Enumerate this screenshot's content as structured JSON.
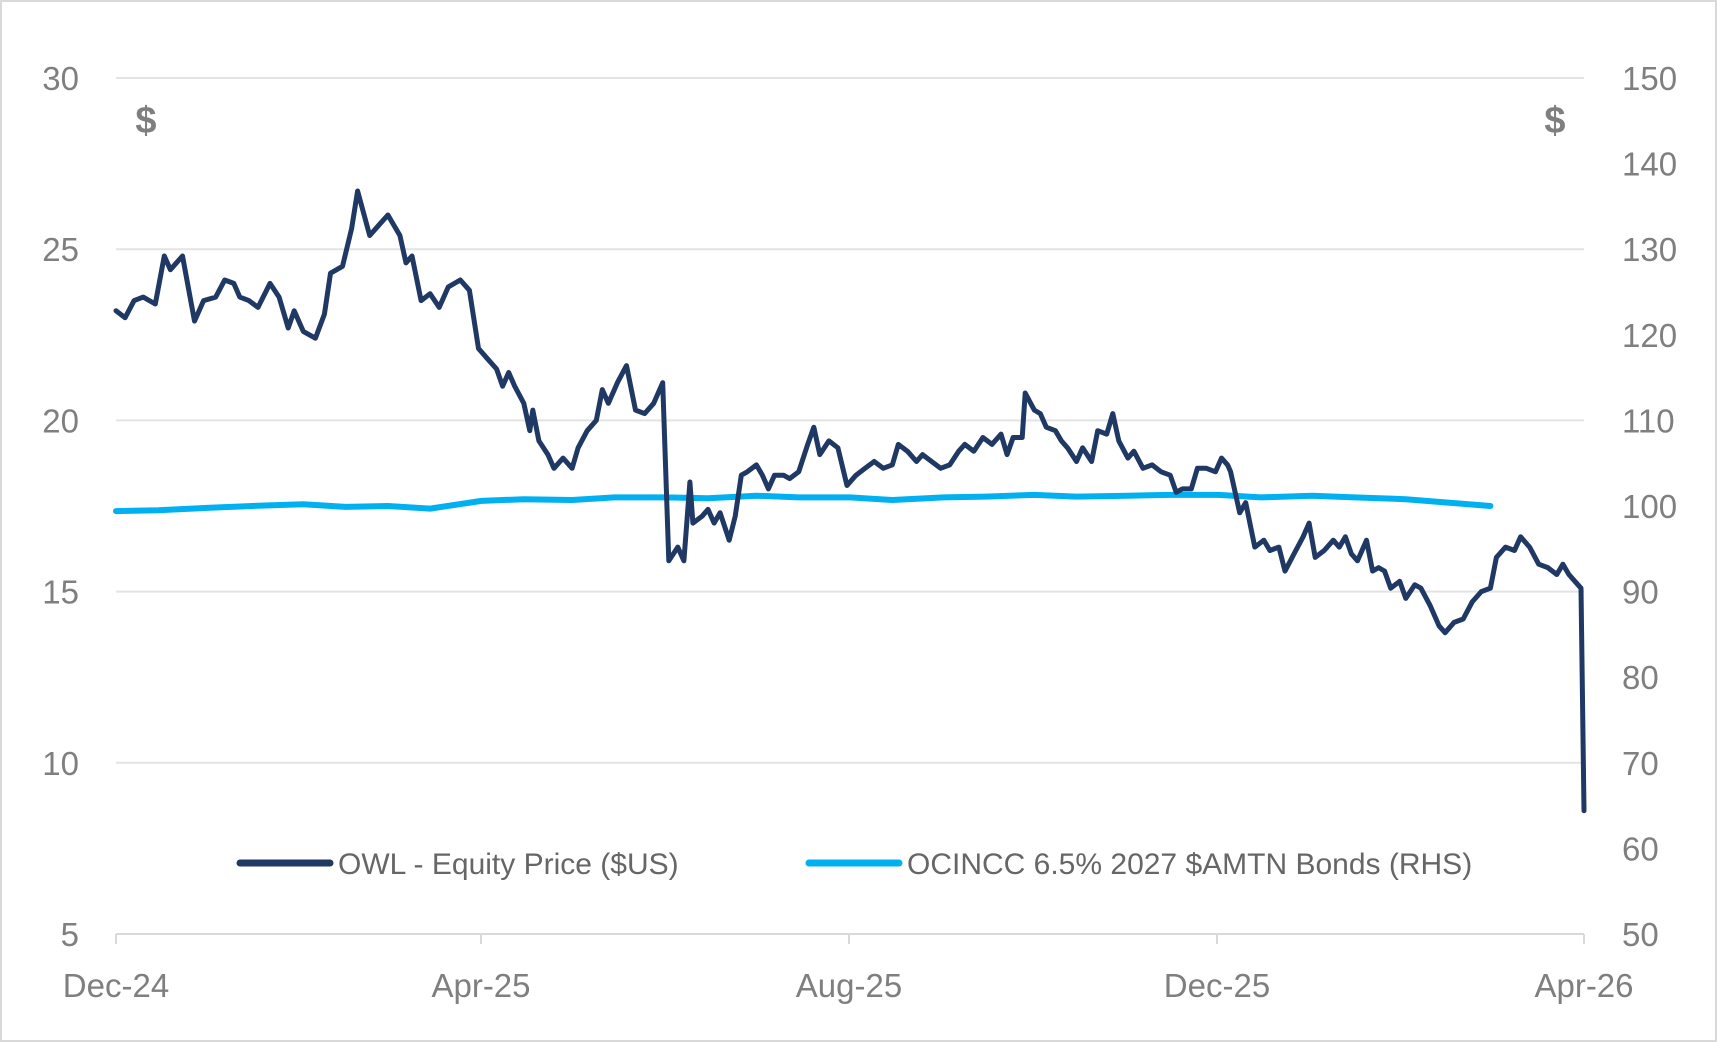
{
  "chart_data": {
    "type": "line",
    "title": "",
    "xlabel": "",
    "ylabel_left": "$",
    "ylabel_right": "$",
    "x_ticks": [
      "Dec-24",
      "Apr-25",
      "Aug-25",
      "Dec-25",
      "Apr-26"
    ],
    "x_range": [
      "2024-12-01",
      "2026-04-01"
    ],
    "ylim_left": [
      5,
      30
    ],
    "yticks_left": [
      5,
      10,
      15,
      20,
      25,
      30
    ],
    "ylim_right": [
      50,
      150
    ],
    "yticks_right": [
      50,
      60,
      70,
      80,
      90,
      100,
      110,
      120,
      130,
      140,
      150
    ],
    "grid": "horizontal",
    "legend_position": "bottom",
    "series": [
      {
        "name": "OWL - Equity Price ($US)",
        "axis": "left",
        "color": "#1f3864",
        "points": [
          [
            "2024-12-01",
            23.2
          ],
          [
            "2024-12-04",
            23.0
          ],
          [
            "2024-12-07",
            23.5
          ],
          [
            "2024-12-10",
            23.6
          ],
          [
            "2024-12-14",
            23.4
          ],
          [
            "2024-12-17",
            24.8
          ],
          [
            "2024-12-19",
            24.4
          ],
          [
            "2024-12-23",
            24.8
          ],
          [
            "2024-12-27",
            22.9
          ],
          [
            "2024-12-30",
            23.5
          ],
          [
            "2025-01-03",
            23.6
          ],
          [
            "2025-01-06",
            24.1
          ],
          [
            "2025-01-09",
            24.0
          ],
          [
            "2025-01-11",
            23.6
          ],
          [
            "2025-01-14",
            23.5
          ],
          [
            "2025-01-17",
            23.3
          ],
          [
            "2025-01-21",
            24.0
          ],
          [
            "2025-01-24",
            23.6
          ],
          [
            "2025-01-27",
            22.7
          ],
          [
            "2025-01-29",
            23.2
          ],
          [
            "2025-02-01",
            22.6
          ],
          [
            "2025-02-05",
            22.4
          ],
          [
            "2025-02-08",
            23.1
          ],
          [
            "2025-02-10",
            24.3
          ],
          [
            "2025-02-14",
            24.5
          ],
          [
            "2025-02-17",
            25.6
          ],
          [
            "2025-02-19",
            26.7
          ],
          [
            "2025-02-23",
            25.4
          ],
          [
            "2025-02-26",
            25.7
          ],
          [
            "2025-03-01",
            26.0
          ],
          [
            "2025-03-05",
            25.4
          ],
          [
            "2025-03-07",
            24.6
          ],
          [
            "2025-03-09",
            24.8
          ],
          [
            "2025-03-12",
            23.5
          ],
          [
            "2025-03-15",
            23.7
          ],
          [
            "2025-03-18",
            23.3
          ],
          [
            "2025-03-21",
            23.9
          ],
          [
            "2025-03-25",
            24.1
          ],
          [
            "2025-03-28",
            23.8
          ],
          [
            "2025-03-31",
            22.1
          ],
          [
            "2025-04-03",
            21.8
          ],
          [
            "2025-04-06",
            21.5
          ],
          [
            "2025-04-08",
            21.0
          ],
          [
            "2025-04-10",
            21.4
          ],
          [
            "2025-04-12",
            21.0
          ],
          [
            "2025-04-15",
            20.5
          ],
          [
            "2025-04-17",
            19.7
          ],
          [
            "2025-04-18",
            20.3
          ],
          [
            "2025-04-20",
            19.4
          ],
          [
            "2025-04-23",
            19.0
          ],
          [
            "2025-04-25",
            18.6
          ],
          [
            "2025-04-28",
            18.9
          ],
          [
            "2025-05-01",
            18.6
          ],
          [
            "2025-05-03",
            19.2
          ],
          [
            "2025-05-06",
            19.7
          ],
          [
            "2025-05-09",
            20.0
          ],
          [
            "2025-05-11",
            20.9
          ],
          [
            "2025-05-13",
            20.5
          ],
          [
            "2025-05-16",
            21.1
          ],
          [
            "2025-05-19",
            21.6
          ],
          [
            "2025-05-22",
            20.3
          ],
          [
            "2025-05-25",
            20.2
          ],
          [
            "2025-05-28",
            20.5
          ],
          [
            "2025-05-31",
            21.1
          ],
          [
            "2025-06-02",
            15.9
          ],
          [
            "2025-06-05",
            16.3
          ],
          [
            "2025-06-07",
            15.9
          ],
          [
            "2025-06-09",
            18.2
          ],
          [
            "2025-06-10",
            17.0
          ],
          [
            "2025-06-13",
            17.2
          ],
          [
            "2025-06-15",
            17.4
          ],
          [
            "2025-06-17",
            17.0
          ],
          [
            "2025-06-19",
            17.3
          ],
          [
            "2025-06-22",
            16.5
          ],
          [
            "2025-06-24",
            17.2
          ],
          [
            "2025-06-26",
            18.4
          ],
          [
            "2025-06-28",
            18.5
          ],
          [
            "2025-07-01",
            18.7
          ],
          [
            "2025-07-03",
            18.4
          ],
          [
            "2025-07-05",
            18.0
          ],
          [
            "2025-07-07",
            18.4
          ],
          [
            "2025-07-10",
            18.4
          ],
          [
            "2025-07-12",
            18.3
          ],
          [
            "2025-07-15",
            18.5
          ],
          [
            "2025-07-18",
            19.3
          ],
          [
            "2025-07-20",
            19.8
          ],
          [
            "2025-07-22",
            19.0
          ],
          [
            "2025-07-25",
            19.4
          ],
          [
            "2025-07-28",
            19.2
          ],
          [
            "2025-07-31",
            18.1
          ],
          [
            "2025-08-03",
            18.4
          ],
          [
            "2025-08-06",
            18.6
          ],
          [
            "2025-08-09",
            18.8
          ],
          [
            "2025-08-12",
            18.6
          ],
          [
            "2025-08-15",
            18.7
          ],
          [
            "2025-08-17",
            19.3
          ],
          [
            "2025-08-20",
            19.1
          ],
          [
            "2025-08-23",
            18.8
          ],
          [
            "2025-08-25",
            19.0
          ],
          [
            "2025-08-28",
            18.8
          ],
          [
            "2025-08-31",
            18.6
          ],
          [
            "2025-09-03",
            18.7
          ],
          [
            "2025-09-06",
            19.1
          ],
          [
            "2025-09-08",
            19.3
          ],
          [
            "2025-09-11",
            19.1
          ],
          [
            "2025-09-14",
            19.5
          ],
          [
            "2025-09-17",
            19.3
          ],
          [
            "2025-09-20",
            19.6
          ],
          [
            "2025-09-22",
            19.0
          ],
          [
            "2025-09-24",
            19.5
          ],
          [
            "2025-09-27",
            19.5
          ],
          [
            "2025-09-28",
            20.8
          ],
          [
            "2025-10-01",
            20.3
          ],
          [
            "2025-10-03",
            20.2
          ],
          [
            "2025-10-05",
            19.8
          ],
          [
            "2025-10-08",
            19.7
          ],
          [
            "2025-10-10",
            19.4
          ],
          [
            "2025-10-12",
            19.2
          ],
          [
            "2025-10-15",
            18.8
          ],
          [
            "2025-10-17",
            19.2
          ],
          [
            "2025-10-20",
            18.8
          ],
          [
            "2025-10-22",
            19.7
          ],
          [
            "2025-10-25",
            19.6
          ],
          [
            "2025-10-27",
            20.2
          ],
          [
            "2025-10-29",
            19.4
          ],
          [
            "2025-11-01",
            18.9
          ],
          [
            "2025-11-03",
            19.1
          ],
          [
            "2025-11-06",
            18.6
          ],
          [
            "2025-11-09",
            18.7
          ],
          [
            "2025-11-12",
            18.5
          ],
          [
            "2025-11-15",
            18.4
          ],
          [
            "2025-11-17",
            17.9
          ],
          [
            "2025-11-19",
            18.0
          ],
          [
            "2025-11-22",
            18.0
          ],
          [
            "2025-11-24",
            18.6
          ],
          [
            "2025-11-27",
            18.6
          ],
          [
            "2025-11-30",
            18.5
          ],
          [
            "2025-12-02",
            18.9
          ],
          [
            "2025-12-04",
            18.7
          ],
          [
            "2025-12-05",
            18.5
          ],
          [
            "2025-12-08",
            17.3
          ],
          [
            "2025-12-10",
            17.6
          ],
          [
            "2025-12-13",
            16.3
          ],
          [
            "2025-12-16",
            16.5
          ],
          [
            "2025-12-18",
            16.2
          ],
          [
            "2025-12-21",
            16.3
          ],
          [
            "2025-12-23",
            15.6
          ],
          [
            "2025-12-26",
            16.1
          ],
          [
            "2025-12-29",
            16.6
          ],
          [
            "2025-12-31",
            17.0
          ],
          [
            "2026-01-02",
            16.0
          ],
          [
            "2026-01-05",
            16.2
          ],
          [
            "2026-01-08",
            16.5
          ],
          [
            "2026-01-10",
            16.3
          ],
          [
            "2026-01-12",
            16.6
          ],
          [
            "2026-01-14",
            16.1
          ],
          [
            "2026-01-16",
            15.9
          ],
          [
            "2026-01-19",
            16.5
          ],
          [
            "2026-01-21",
            15.6
          ],
          [
            "2026-01-23",
            15.7
          ],
          [
            "2026-01-25",
            15.6
          ],
          [
            "2026-01-27",
            15.1
          ],
          [
            "2026-01-30",
            15.3
          ],
          [
            "2026-02-01",
            14.8
          ],
          [
            "2026-02-04",
            15.2
          ],
          [
            "2026-02-06",
            15.1
          ],
          [
            "2026-02-09",
            14.6
          ],
          [
            "2026-02-12",
            14.0
          ],
          [
            "2026-02-14",
            13.8
          ],
          [
            "2026-02-17",
            14.1
          ],
          [
            "2026-02-20",
            14.2
          ],
          [
            "2026-02-23",
            14.7
          ],
          [
            "2026-02-26",
            15.0
          ],
          [
            "2026-03-01",
            15.1
          ],
          [
            "2026-03-03",
            16.0
          ],
          [
            "2026-03-06",
            16.3
          ],
          [
            "2026-03-09",
            16.2
          ],
          [
            "2026-03-11",
            16.6
          ],
          [
            "2026-03-14",
            16.3
          ],
          [
            "2026-03-17",
            15.8
          ],
          [
            "2026-03-20",
            15.7
          ],
          [
            "2026-03-23",
            15.5
          ],
          [
            "2026-03-25",
            15.8
          ],
          [
            "2026-03-27",
            15.5
          ],
          [
            "2026-03-29",
            15.3
          ],
          [
            "2026-03-31",
            15.1
          ],
          [
            "2026-04-01",
            8.6
          ]
        ]
      },
      {
        "name": "OCINCC 6.5% 2027 $AMTN Bonds (RHS)",
        "axis": "right",
        "color": "#00b0f0",
        "points": [
          [
            "2024-12-01",
            99.4
          ],
          [
            "2024-12-15",
            99.5
          ],
          [
            "2025-01-01",
            99.8
          ],
          [
            "2025-01-15",
            100.0
          ],
          [
            "2025-02-01",
            100.2
          ],
          [
            "2025-02-15",
            99.9
          ],
          [
            "2025-03-01",
            100.0
          ],
          [
            "2025-03-15",
            99.7
          ],
          [
            "2025-04-01",
            100.6
          ],
          [
            "2025-04-15",
            100.8
          ],
          [
            "2025-05-01",
            100.7
          ],
          [
            "2025-05-15",
            101.0
          ],
          [
            "2025-06-01",
            101.0
          ],
          [
            "2025-06-15",
            100.9
          ],
          [
            "2025-07-01",
            101.2
          ],
          [
            "2025-07-15",
            101.0
          ],
          [
            "2025-08-01",
            101.0
          ],
          [
            "2025-08-15",
            100.7
          ],
          [
            "2025-09-01",
            101.0
          ],
          [
            "2025-09-15",
            101.1
          ],
          [
            "2025-10-01",
            101.3
          ],
          [
            "2025-10-15",
            101.1
          ],
          [
            "2025-11-01",
            101.2
          ],
          [
            "2025-11-15",
            101.3
          ],
          [
            "2025-12-01",
            101.3
          ],
          [
            "2025-12-15",
            101.0
          ],
          [
            "2026-01-01",
            101.2
          ],
          [
            "2026-01-15",
            101.0
          ],
          [
            "2026-02-01",
            100.8
          ],
          [
            "2026-02-15",
            100.4
          ],
          [
            "2026-03-01",
            100.0
          ]
        ]
      }
    ]
  }
}
